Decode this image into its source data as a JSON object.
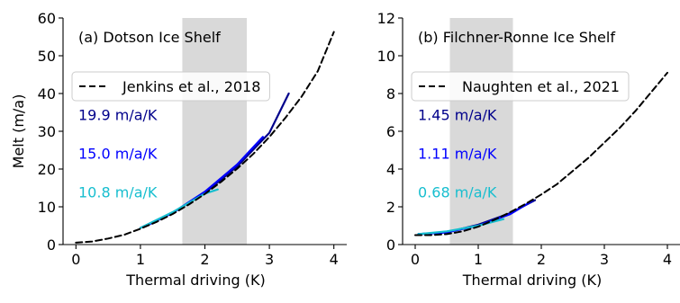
{
  "chart_data": [
    {
      "type": "line",
      "title": "(a) Dotson Ice Shelf",
      "xlabel": "Thermal driving (K)",
      "ylabel": "Melt (m/a)",
      "xlim": [
        -0.2,
        4.2
      ],
      "ylim": [
        0,
        60
      ],
      "xticks": [
        0,
        1,
        2,
        3,
        4
      ],
      "yticks": [
        0,
        10,
        20,
        30,
        40,
        50,
        60
      ],
      "shaded_band": [
        1.65,
        2.65
      ],
      "grid": false,
      "legend_position": "upper-left",
      "series": [
        {
          "name": "Jenkins et al., 2018",
          "style": "dashed",
          "color": "#000000",
          "x": [
            0,
            0.25,
            0.5,
            0.75,
            1.0,
            1.25,
            1.5,
            1.75,
            2.0,
            2.25,
            2.5,
            2.75,
            3.0,
            3.25,
            3.5,
            3.75,
            4.0
          ],
          "y": [
            0.5,
            0.8,
            1.6,
            2.6,
            4.2,
            6.0,
            8.1,
            10.6,
            13.4,
            16.6,
            20.1,
            24.0,
            28.5,
            33.6,
            39.2,
            45.9,
            56.3
          ]
        },
        {
          "style": "solid",
          "color": "#00008b",
          "x": [
            1.0,
            1.5,
            2.0,
            2.5,
            3.0,
            3.3
          ],
          "y": [
            4.4,
            8.4,
            13.7,
            20.7,
            29.6,
            40.0
          ]
        },
        {
          "style": "solid",
          "color": "#0000ff",
          "x": [
            1.05,
            1.5,
            2.0,
            2.5,
            2.9
          ],
          "y": [
            4.6,
            8.4,
            14.0,
            21.2,
            28.5
          ]
        },
        {
          "style": "solid",
          "color": "#17becf",
          "x": [
            1.0,
            1.5,
            2.0,
            2.2
          ],
          "y": [
            4.4,
            8.6,
            13.5,
            14.6
          ]
        }
      ],
      "rate_labels": [
        {
          "text": "19.9 m/a/K",
          "color": "#00008b"
        },
        {
          "text": "15.0 m/a/K",
          "color": "#0000ff"
        },
        {
          "text": "10.8 m/a/K",
          "color": "#17becf"
        }
      ]
    },
    {
      "type": "line",
      "title": "(b) Filchner-Ronne Ice Shelf",
      "xlabel": "Thermal driving (K)",
      "ylabel": "",
      "xlim": [
        -0.2,
        4.2
      ],
      "ylim": [
        0,
        12
      ],
      "xticks": [
        0,
        1,
        2,
        3,
        4
      ],
      "yticks": [
        0,
        2,
        4,
        6,
        8,
        10,
        12
      ],
      "shaded_band": [
        0.55,
        1.55
      ],
      "grid": false,
      "legend_position": "upper-left",
      "series": [
        {
          "name": "Naughten et al., 2021",
          "style": "dashed",
          "color": "#000000",
          "x": [
            0,
            0.25,
            0.5,
            0.75,
            1.0,
            1.25,
            1.5,
            1.75,
            2.0,
            2.25,
            2.5,
            2.75,
            3.0,
            3.25,
            3.5,
            3.75,
            4.0
          ],
          "y": [
            0.5,
            0.5,
            0.55,
            0.7,
            0.95,
            1.3,
            1.7,
            2.15,
            2.65,
            3.2,
            3.9,
            4.6,
            5.4,
            6.2,
            7.1,
            8.1,
            9.1
          ]
        },
        {
          "style": "solid",
          "color": "#00008b",
          "x": [
            0.05,
            0.5,
            1.0,
            1.5,
            1.9
          ],
          "y": [
            0.55,
            0.65,
            1.05,
            1.65,
            2.35
          ]
        },
        {
          "style": "solid",
          "color": "#0000ff",
          "x": [
            0.05,
            0.5,
            1.0,
            1.5,
            1.85
          ],
          "y": [
            0.55,
            0.65,
            1.0,
            1.6,
            2.3
          ]
        },
        {
          "style": "solid",
          "color": "#17becf",
          "x": [
            0.05,
            0.5,
            1.0,
            1.4
          ],
          "y": [
            0.55,
            0.7,
            1.0,
            1.35
          ]
        }
      ],
      "rate_labels": [
        {
          "text": "1.45 m/a/K",
          "color": "#00008b"
        },
        {
          "text": "1.11 m/a/K",
          "color": "#0000ff"
        },
        {
          "text": "0.68 m/a/K",
          "color": "#17becf"
        }
      ]
    }
  ]
}
